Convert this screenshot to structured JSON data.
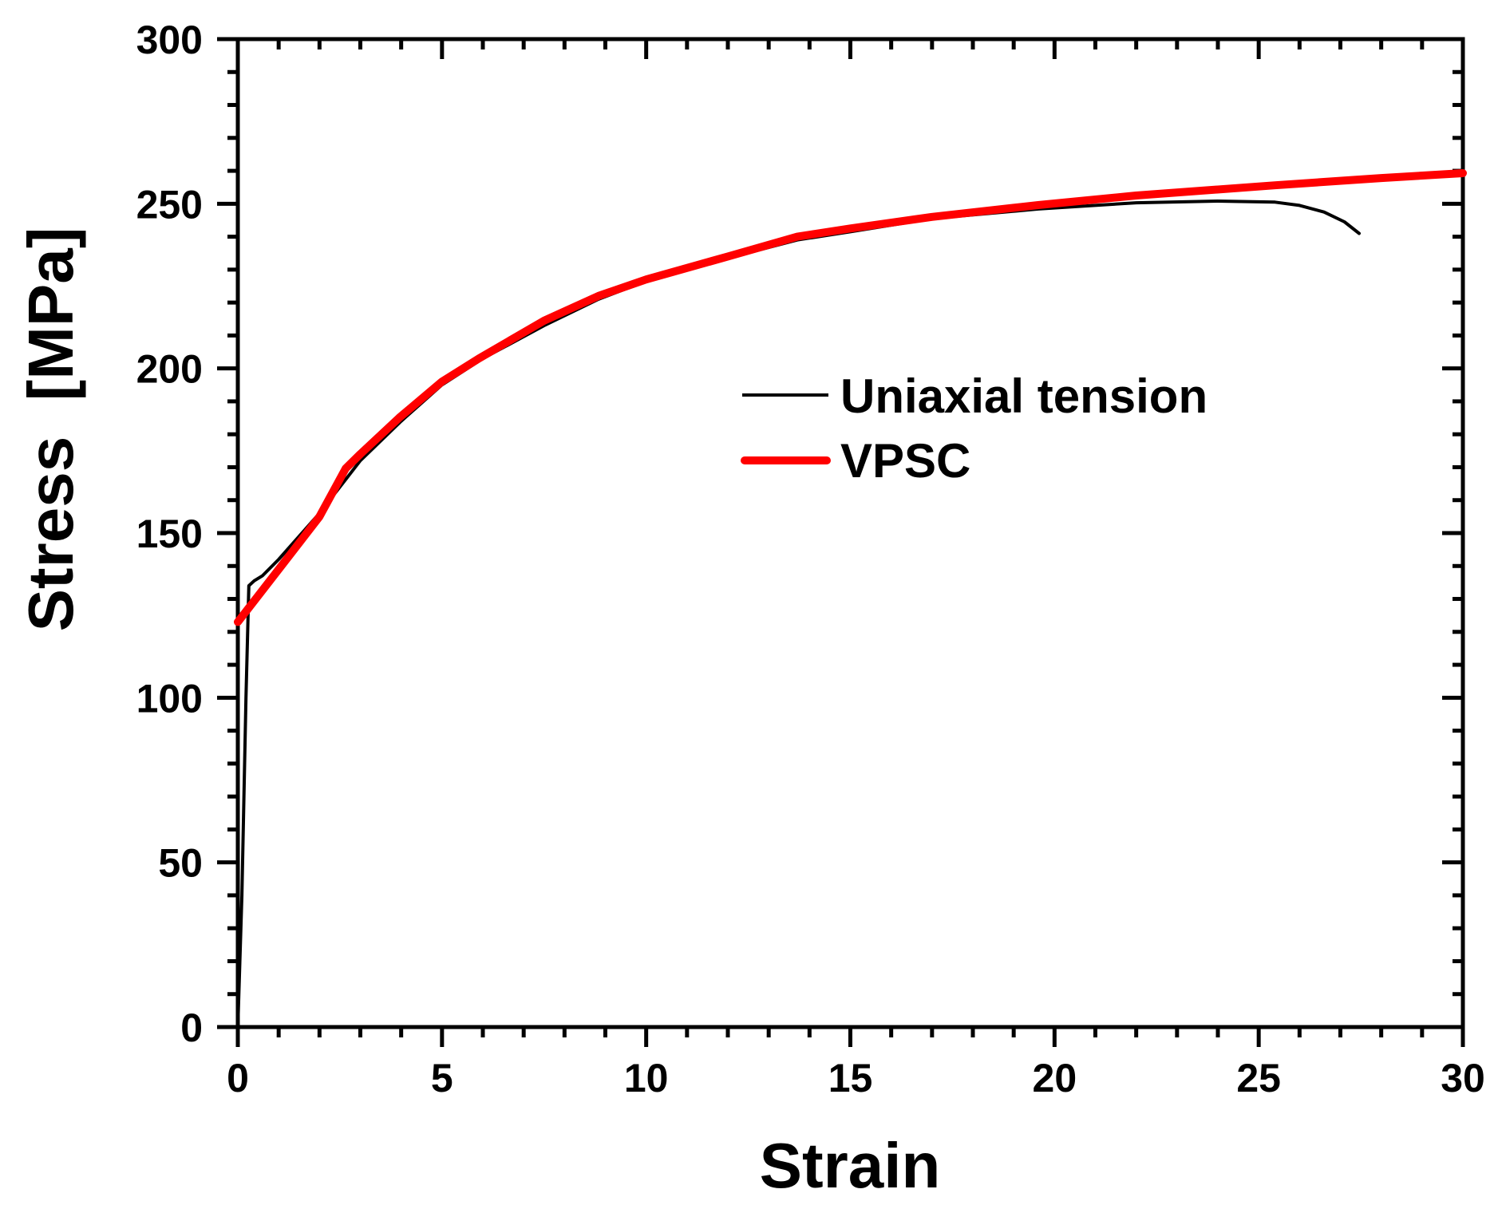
{
  "chart_data": {
    "type": "line",
    "title": "",
    "xlabel": "Strain",
    "ylabel": "Stress  [MPa]",
    "xlim": [
      0,
      30
    ],
    "ylim": [
      0,
      300
    ],
    "xticks": [
      "0",
      "5",
      "10",
      "15",
      "20",
      "25",
      "30"
    ],
    "yticks": [
      "0",
      "50",
      "100",
      "150",
      "200",
      "250",
      "300"
    ],
    "x_minor_step": 1,
    "y_minor_step": 10,
    "grid": false,
    "legend_position": "upper center-right",
    "series": [
      {
        "name": "Uniaxial tension",
        "color": "#000000",
        "line_width": 4,
        "x": [
          0,
          0.1,
          0.2,
          0.27,
          0.4,
          0.6,
          1,
          2,
          3,
          4,
          5,
          6,
          7.5,
          8.83,
          10,
          12,
          13.7,
          15,
          17,
          19.6,
          22,
          24,
          25.4,
          26,
          26.6,
          27.1,
          27.46
        ],
        "y": [
          0,
          40,
          100,
          134,
          135.5,
          137,
          142,
          156,
          172,
          184,
          195,
          203,
          213,
          221,
          226.5,
          233.5,
          239,
          241.5,
          245.5,
          248.4,
          250.3,
          250.8,
          250.5,
          249.5,
          247.5,
          244.5,
          241
        ]
      },
      {
        "name": "VPSC",
        "color": "#ff0000",
        "line_width": 10,
        "x": [
          0,
          0.5,
          1,
          2,
          2.64,
          3,
          3.95,
          5,
          5.9,
          7.5,
          8.83,
          10,
          12,
          13.7,
          15,
          17,
          19.6,
          22,
          25.4,
          28,
          30
        ],
        "y": [
          123,
          131,
          139,
          155,
          169.6,
          174,
          185,
          196,
          203,
          214.5,
          222,
          227,
          234,
          240,
          242.5,
          246,
          249.6,
          252.5,
          255.6,
          257.8,
          259.3
        ]
      }
    ]
  },
  "legend": {
    "items": [
      {
        "label": "Uniaxial tension",
        "color": "#000000"
      },
      {
        "label": "VPSC",
        "color": "#ff0000"
      }
    ]
  }
}
